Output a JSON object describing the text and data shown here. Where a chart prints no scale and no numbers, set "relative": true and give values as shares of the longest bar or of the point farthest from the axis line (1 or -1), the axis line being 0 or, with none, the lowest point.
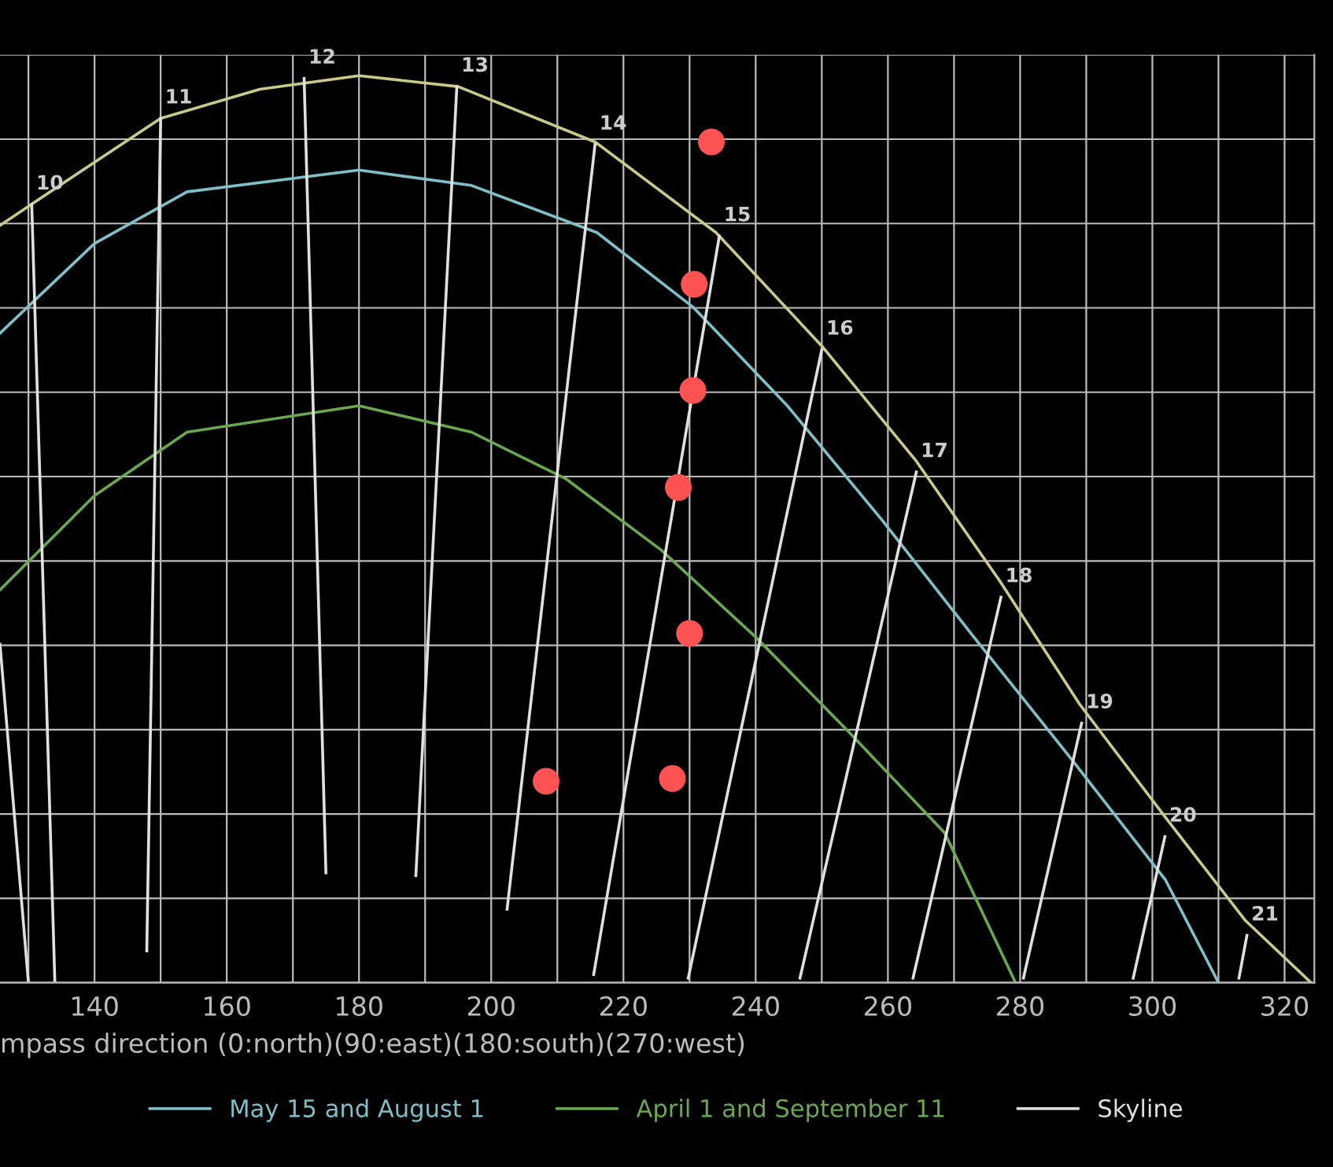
{
  "chart_data": {
    "type": "line",
    "xlabel": "mpass direction (0:north)(90:east)(180:south)(270:west)",
    "relative": true,
    "grid": true,
    "tick_labels": "x",
    "legend": "bottom",
    "xlim": [
      125.7,
      324.5
    ],
    "xticks": [
      {
        "value": 130,
        "label": null
      },
      140,
      {
        "value": 150,
        "label": null
      },
      160,
      {
        "value": 170,
        "label": null
      },
      180,
      {
        "value": 190,
        "label": null
      },
      200,
      {
        "value": 210,
        "label": null
      },
      220,
      {
        "value": 230,
        "label": null
      },
      240,
      {
        "value": 250,
        "label": null
      },
      260,
      {
        "value": 270,
        "label": null
      },
      280,
      {
        "value": 290,
        "label": null
      },
      300,
      {
        "value": 310,
        "label": null
      },
      320
    ],
    "series": [
      {
        "color": "#c9c98a",
        "x": [
          125.7,
          137.6,
          150,
          165,
          180,
          195,
          215.7,
          234,
          250,
          264.3,
          277,
          289,
          302,
          314,
          324
        ],
        "values": [
          0.835,
          0.893,
          0.953,
          0.985,
          1.0,
          0.988,
          0.927,
          0.827,
          0.702,
          0.575,
          0.442,
          0.307,
          0.182,
          0.069,
          0
        ]
      },
      {
        "name": "May 15 and August 1",
        "color": "#7fbfc8",
        "x": [
          125.7,
          140,
          154,
          180,
          197,
          216,
          230.5,
          244.8,
          259,
          273,
          287.6,
          302,
          310
        ],
        "values": [
          0.716,
          0.815,
          0.872,
          0.896,
          0.879,
          0.827,
          0.745,
          0.636,
          0.511,
          0.381,
          0.248,
          0.113,
          0
        ]
      },
      {
        "name": "April 1 and September 11",
        "color": "#6aa84f",
        "x": [
          125.7,
          140,
          154,
          180,
          197,
          211.4,
          225.7,
          240,
          254,
          268.6,
          279.3
        ],
        "values": [
          0.433,
          0.537,
          0.607,
          0.636,
          0.607,
          0.555,
          0.477,
          0.381,
          0.277,
          0.165,
          0
        ]
      },
      {
        "name": "Skyline",
        "color": "#e0e0e0",
        "x": [
          125.7,
          130
        ],
        "values": [
          0.373,
          0
        ]
      },
      {
        "color": "#e0e0e0",
        "x": [
          130.5,
          134
        ],
        "values": [
          0.858,
          0
        ]
      },
      {
        "color": "#e0e0e0",
        "x": [
          150,
          147.9
        ],
        "values": [
          0.953,
          0.035
        ]
      },
      {
        "color": "#e0e0e0",
        "x": [
          171.7,
          175
        ],
        "values": [
          0.997,
          0.121
        ]
      },
      {
        "color": "#e0e0e0",
        "x": [
          194.8,
          188.6
        ],
        "values": [
          0.988,
          0.118
        ]
      },
      {
        "color": "#e0e0e0",
        "x": [
          215.7,
          202.4
        ],
        "values": [
          0.924,
          0.081
        ]
      },
      {
        "color": "#e0e0e0",
        "x": [
          234.5,
          215.5
        ],
        "values": [
          0.823,
          0.009
        ]
      },
      {
        "color": "#e0e0e0",
        "x": [
          250,
          229.8
        ],
        "values": [
          0.698,
          0.005
        ]
      },
      {
        "color": "#e0e0e0",
        "x": [
          264.3,
          246.7
        ],
        "values": [
          0.563,
          0.005
        ]
      },
      {
        "color": "#e0e0e0",
        "x": [
          277.1,
          263.8
        ],
        "values": [
          0.425,
          0.005
        ]
      },
      {
        "color": "#e0e0e0",
        "x": [
          289.3,
          280.5
        ],
        "values": [
          0.286,
          0.005
        ]
      },
      {
        "color": "#e0e0e0",
        "x": [
          301.9,
          297.1
        ],
        "values": [
          0.161,
          0.005
        ]
      },
      {
        "color": "#e0e0e0",
        "x": [
          314.3,
          313.1
        ],
        "values": [
          0.052,
          0.005
        ]
      },
      {
        "type": "scatter",
        "marker": "circle",
        "color": "#ff5252",
        "x": [
          233.3,
          230.7,
          230.5,
          228.3,
          230,
          227.4,
          208.3
        ],
        "values": [
          0.927,
          0.77,
          0.653,
          0.546,
          0.385,
          0.225,
          0.222
        ]
      }
    ],
    "annotations": [
      {
        "text": "10",
        "x": 130.5,
        "y": 0.858
      },
      {
        "text": "11",
        "x": 150,
        "y": 0.953
      },
      {
        "text": "12",
        "x": 171.7,
        "y": 0.997
      },
      {
        "text": "13",
        "x": 194.8,
        "y": 0.988
      },
      {
        "text": "14",
        "x": 215.7,
        "y": 0.924
      },
      {
        "text": "15",
        "x": 234.5,
        "y": 0.823
      },
      {
        "text": "16",
        "x": 250,
        "y": 0.698
      },
      {
        "text": "17",
        "x": 264.3,
        "y": 0.563
      },
      {
        "text": "18",
        "x": 277.1,
        "y": 0.425
      },
      {
        "text": "19",
        "x": 289.3,
        "y": 0.286
      },
      {
        "text": "20",
        "x": 301.9,
        "y": 0.161
      },
      {
        "text": "21",
        "x": 314.3,
        "y": 0.052
      }
    ]
  }
}
